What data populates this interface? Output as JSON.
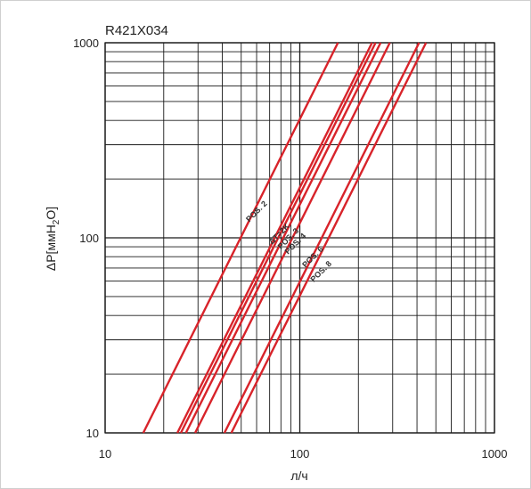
{
  "chart_data": {
    "type": "line",
    "title": "R421X034",
    "xlabel": "л/ч",
    "ylabel": {
      "main": "ΔP[ммH",
      "sub": "2",
      "tail": "O]"
    },
    "x_scale": "log",
    "y_scale": "log",
    "xlim": [
      10,
      1000
    ],
    "ylim": [
      10,
      1000
    ],
    "x_ticks": [
      {
        "value": 10,
        "label": "10"
      },
      {
        "value": 100,
        "label": "100"
      },
      {
        "value": 1000,
        "label": "1000"
      }
    ],
    "y_ticks": [
      {
        "value": 10,
        "label": "10"
      },
      {
        "value": 100,
        "label": "100"
      },
      {
        "value": 1000,
        "label": "1000"
      }
    ],
    "grid": true,
    "series": [
      {
        "name": "POS. 2",
        "x": [
          15.7,
          157
        ],
        "y": [
          10,
          1000
        ]
      },
      {
        "name": "ΔT=2K",
        "x": [
          24.5,
          245
        ],
        "y": [
          10,
          1000
        ]
      },
      {
        "name": "POS. 3",
        "x": [
          26,
          260
        ],
        "y": [
          10,
          1000
        ]
      },
      {
        "name": "POS. 4",
        "x": [
          29,
          290
        ],
        "y": [
          10,
          1000
        ]
      },
      {
        "name": "",
        "x": [
          23.5,
          235
        ],
        "y": [
          10,
          1000
        ]
      },
      {
        "name": "POS. 6",
        "x": [
          41,
          410
        ],
        "y": [
          10,
          1000
        ]
      },
      {
        "name": "POS. 8",
        "x": [
          44.5,
          445
        ],
        "y": [
          10,
          1000
        ]
      }
    ],
    "label_anchor": [
      {
        "text": "POS. 2",
        "x": 55,
        "y": 120
      },
      {
        "text": "ΔT=2K",
        "x": 72,
        "y": 92
      },
      {
        "text": "POS. 3",
        "x": 80,
        "y": 87
      },
      {
        "text": "POS. 4",
        "x": 87,
        "y": 82
      },
      {
        "text": "POS. 6",
        "x": 107,
        "y": 70
      },
      {
        "text": "POS. 8",
        "x": 118,
        "y": 59
      }
    ],
    "colors": {
      "series": "#d8232a",
      "grid": "#1a1a1a",
      "frame": "#1a1a1a"
    }
  }
}
